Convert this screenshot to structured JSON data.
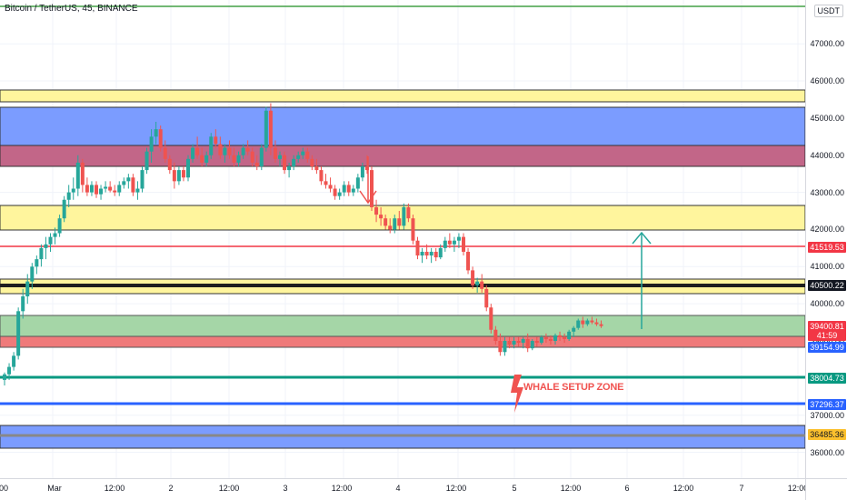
{
  "chart": {
    "title": "Bitcoin / TetherUS, 45, BINANCE",
    "currency": "USDT",
    "annotation_text": "WHALE SETUP ZONE",
    "colors": {
      "up": "#26a69a",
      "down": "#ef5350",
      "blue_zone": "#7b9cff",
      "yellow_zone": "#fff59d",
      "maroon_zone": "#c26688",
      "green_zone": "#a5d6a7",
      "red_zone": "#ef7a7a",
      "blue_line": "#2962ff",
      "teal_line": "#089981",
      "red_line": "#f23645",
      "green_line": "#43a047",
      "grid": "#f0f3fa"
    }
  },
  "price_axis": {
    "ticks": [
      "47000.00",
      "46000.00",
      "45000.00",
      "44000.00",
      "43000.00",
      "42000.00",
      "41000.00",
      "40000.00",
      "39000.00",
      "38000.00",
      "37000.00",
      "36000.00"
    ],
    "labels": [
      {
        "text": "41519.53",
        "price": 41519.53,
        "color": "#f23645"
      },
      {
        "text": "40500.22",
        "price": 40500.22,
        "color": "#131722"
      },
      {
        "text": "39400.81",
        "price": 39400.81,
        "color": "#f23645"
      },
      {
        "text": "41:59",
        "price": 39140,
        "color": "#f23645"
      },
      {
        "text": "39154.99",
        "price": 38820,
        "color": "#2962ff"
      },
      {
        "text": "38004.73",
        "price": 38004.73,
        "color": "#089981"
      },
      {
        "text": "37296.37",
        "price": 37296.37,
        "color": "#2962ff"
      },
      {
        "text": "36485.36",
        "price": 36485.36,
        "color": "#fbc02d",
        "text_color": "#131722"
      }
    ]
  },
  "time_axis": {
    "ticks": [
      "00",
      "Mar",
      "12:00",
      "2",
      "12:00",
      "3",
      "12:00",
      "4",
      "12:00",
      "5",
      "12:00",
      "6",
      "12:00",
      "7",
      "12:00"
    ]
  },
  "chart_data": {
    "type": "candlestick",
    "title": "Bitcoin / TetherUS, 45, BINANCE",
    "ylim": [
      35600,
      48100
    ],
    "key_levels": [
      41519.53,
      40500.22,
      38004.73,
      37296.37,
      36485.36
    ],
    "candles": [
      [
        37950,
        38150,
        37800,
        38100
      ],
      [
        38100,
        38400,
        37950,
        38300
      ],
      [
        38300,
        38700,
        38200,
        38600
      ],
      [
        38600,
        39900,
        38500,
        39800
      ],
      [
        39800,
        40400,
        39600,
        40200
      ],
      [
        40200,
        40800,
        40000,
        40600
      ],
      [
        40600,
        41100,
        40400,
        41000
      ],
      [
        41000,
        41300,
        40800,
        41200
      ],
      [
        41200,
        41600,
        41000,
        41500
      ],
      [
        41500,
        41800,
        41200,
        41600
      ],
      [
        41600,
        41900,
        41400,
        41800
      ],
      [
        41800,
        42050,
        41600,
        41900
      ],
      [
        41900,
        42400,
        41800,
        42300
      ],
      [
        42300,
        42900,
        42200,
        42800
      ],
      [
        42800,
        43200,
        42600,
        43000
      ],
      [
        43000,
        43400,
        42800,
        43100
      ],
      [
        43100,
        44000,
        42900,
        43800
      ],
      [
        43800,
        43900,
        43000,
        43200
      ],
      [
        43200,
        43400,
        42900,
        43000
      ],
      [
        43000,
        43300,
        42900,
        43200
      ],
      [
        43200,
        43300,
        42850,
        42950
      ],
      [
        42950,
        43200,
        42800,
        43100
      ],
      [
        43100,
        43300,
        43000,
        43150
      ],
      [
        43150,
        43300,
        43000,
        43050
      ],
      [
        43050,
        43200,
        42900,
        43000
      ],
      [
        43000,
        43300,
        42900,
        43200
      ],
      [
        43200,
        43400,
        43100,
        43300
      ],
      [
        43300,
        43500,
        43100,
        43400
      ],
      [
        43400,
        43500,
        42900,
        43000
      ],
      [
        43000,
        43300,
        42800,
        43100
      ],
      [
        43100,
        43700,
        43000,
        43600
      ],
      [
        43600,
        44200,
        43500,
        44100
      ],
      [
        44100,
        44700,
        43800,
        44500
      ],
      [
        44500,
        44900,
        44300,
        44700
      ],
      [
        44700,
        44800,
        44100,
        44200
      ],
      [
        44200,
        44400,
        43800,
        43900
      ],
      [
        43900,
        44000,
        43500,
        43600
      ],
      [
        43600,
        43800,
        43100,
        43300
      ],
      [
        43300,
        43700,
        43200,
        43600
      ],
      [
        43600,
        43700,
        43300,
        43400
      ],
      [
        43400,
        44000,
        43300,
        43900
      ],
      [
        43900,
        44300,
        43800,
        44200
      ],
      [
        44200,
        44500,
        43900,
        44000
      ],
      [
        44000,
        44200,
        43700,
        43800
      ],
      [
        43800,
        44100,
        43700,
        44000
      ],
      [
        44000,
        44600,
        43900,
        44500
      ],
      [
        44500,
        44700,
        44200,
        44300
      ],
      [
        44300,
        44500,
        43900,
        44000
      ],
      [
        44000,
        44300,
        43800,
        44200
      ],
      [
        44200,
        44400,
        43900,
        44000
      ],
      [
        44000,
        44200,
        43700,
        43800
      ],
      [
        43800,
        44100,
        43700,
        44000
      ],
      [
        44000,
        44300,
        43900,
        44200
      ],
      [
        44200,
        44400,
        44000,
        44100
      ],
      [
        44100,
        44200,
        43700,
        43800
      ],
      [
        43800,
        44000,
        43600,
        43700
      ],
      [
        43700,
        44300,
        43600,
        44200
      ],
      [
        44200,
        45300,
        44100,
        45200
      ],
      [
        45200,
        45400,
        44000,
        44200
      ],
      [
        44200,
        44400,
        43800,
        43900
      ],
      [
        43900,
        44100,
        43700,
        44000
      ],
      [
        44000,
        44100,
        43500,
        43600
      ],
      [
        43600,
        43800,
        43400,
        43700
      ],
      [
        43700,
        44000,
        43600,
        43900
      ],
      [
        43900,
        44100,
        43800,
        44000
      ],
      [
        44000,
        44200,
        43900,
        44100
      ],
      [
        44100,
        44200,
        43800,
        43900
      ],
      [
        43900,
        44000,
        43600,
        43700
      ],
      [
        43700,
        43900,
        43500,
        43600
      ],
      [
        43600,
        43700,
        43200,
        43300
      ],
      [
        43300,
        43500,
        43100,
        43200
      ],
      [
        43200,
        43400,
        43000,
        43100
      ],
      [
        43100,
        43200,
        42800,
        42900
      ],
      [
        42900,
        43100,
        42800,
        43000
      ],
      [
        43000,
        43300,
        42900,
        43200
      ],
      [
        43200,
        43300,
        42900,
        43000
      ],
      [
        43000,
        43200,
        42900,
        43100
      ],
      [
        43100,
        43500,
        43000,
        43400
      ],
      [
        43400,
        43800,
        43300,
        43700
      ],
      [
        43700,
        44000,
        43500,
        43600
      ],
      [
        43600,
        43700,
        42500,
        42600
      ],
      [
        42600,
        42800,
        42200,
        42400
      ],
      [
        42400,
        42600,
        42100,
        42300
      ],
      [
        42300,
        42400,
        42000,
        42100
      ],
      [
        42100,
        42300,
        41900,
        42000
      ],
      [
        42000,
        42400,
        41900,
        42300
      ],
      [
        42300,
        42500,
        42000,
        42100
      ],
      [
        42100,
        42700,
        42000,
        42600
      ],
      [
        42600,
        42700,
        42200,
        42300
      ],
      [
        42300,
        42400,
        41600,
        41700
      ],
      [
        41700,
        41800,
        41200,
        41300
      ],
      [
        41300,
        41500,
        41100,
        41400
      ],
      [
        41400,
        41600,
        41200,
        41300
      ],
      [
        41300,
        41500,
        41100,
        41400
      ],
      [
        41400,
        41500,
        41150,
        41250
      ],
      [
        41250,
        41600,
        41200,
        41500
      ],
      [
        41500,
        41800,
        41400,
        41700
      ],
      [
        41700,
        41900,
        41500,
        41600
      ],
      [
        41600,
        41800,
        41400,
        41700
      ],
      [
        41700,
        41900,
        41500,
        41800
      ],
      [
        41800,
        41900,
        41300,
        41400
      ],
      [
        41400,
        41500,
        40800,
        40900
      ],
      [
        40900,
        41000,
        40400,
        40500
      ],
      [
        40500,
        40700,
        40300,
        40600
      ],
      [
        40600,
        40800,
        40300,
        40400
      ],
      [
        40400,
        40500,
        39800,
        39900
      ],
      [
        39900,
        40000,
        39200,
        39300
      ],
      [
        39300,
        39400,
        38900,
        39000
      ],
      [
        39000,
        39200,
        38600,
        38700
      ],
      [
        38700,
        39100,
        38600,
        39000
      ],
      [
        39000,
        39100,
        38800,
        38900
      ],
      [
        38900,
        39100,
        38800,
        39000
      ],
      [
        39000,
        39100,
        38850,
        38950
      ],
      [
        38950,
        39100,
        38800,
        39050
      ],
      [
        39050,
        39200,
        38700,
        38800
      ],
      [
        38800,
        39050,
        38750,
        39000
      ],
      [
        39000,
        39100,
        38850,
        38950
      ],
      [
        38950,
        39150,
        38900,
        39100
      ],
      [
        39100,
        39200,
        38950,
        39050
      ],
      [
        39050,
        39150,
        38900,
        39000
      ],
      [
        39000,
        39200,
        38900,
        39150
      ],
      [
        39150,
        39250,
        39000,
        39100
      ],
      [
        39100,
        39200,
        38950,
        39050
      ],
      [
        39050,
        39300,
        39000,
        39250
      ],
      [
        39250,
        39400,
        39100,
        39350
      ],
      [
        39350,
        39600,
        39300,
        39550
      ],
      [
        39550,
        39650,
        39350,
        39450
      ],
      [
        39450,
        39600,
        39400,
        39550
      ],
      [
        39550,
        39650,
        39450,
        39500
      ],
      [
        39500,
        39600,
        39400,
        39450
      ],
      [
        39450,
        39550,
        39350,
        39400
      ]
    ]
  }
}
